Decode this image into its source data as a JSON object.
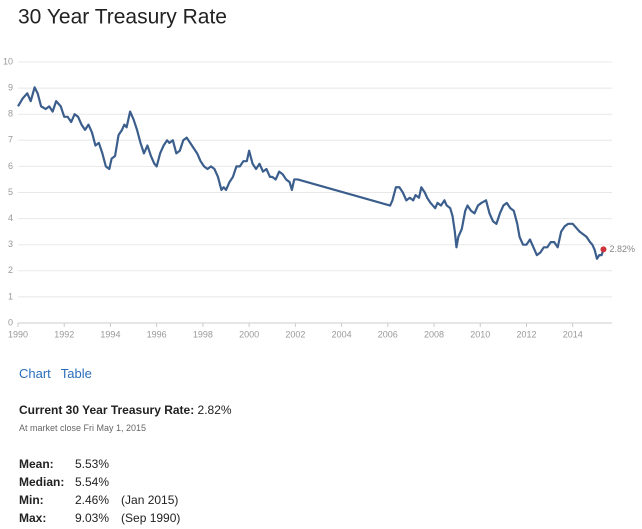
{
  "chart_data": {
    "type": "line",
    "title": "30 Year Treasury Rate",
    "x": [
      1990.0,
      1990.2,
      1990.4,
      1990.55,
      1990.72,
      1990.85,
      1991.0,
      1991.2,
      1991.35,
      1991.5,
      1991.65,
      1991.85,
      1992.0,
      1992.15,
      1992.3,
      1992.45,
      1992.6,
      1992.75,
      1992.9,
      1993.05,
      1993.2,
      1993.35,
      1993.5,
      1993.65,
      1993.8,
      1993.95,
      1994.05,
      1994.2,
      1994.35,
      1994.5,
      1994.6,
      1994.7,
      1994.85,
      1995.0,
      1995.15,
      1995.3,
      1995.45,
      1995.6,
      1995.75,
      1995.9,
      1996.0,
      1996.15,
      1996.3,
      1996.45,
      1996.55,
      1996.7,
      1996.85,
      1997.0,
      1997.15,
      1997.3,
      1997.45,
      1997.6,
      1997.75,
      1997.9,
      1998.05,
      1998.2,
      1998.35,
      1998.5,
      1998.65,
      1998.8,
      1998.9,
      1999.0,
      1999.15,
      1999.3,
      1999.45,
      1999.6,
      1999.75,
      1999.9,
      2000.0,
      2000.15,
      2000.3,
      2000.45,
      2000.6,
      2000.75,
      2000.9,
      2001.0,
      2001.15,
      2001.3,
      2001.45,
      2001.6,
      2001.75,
      2001.85,
      2001.95,
      2002.1,
      2006.1,
      2006.2,
      2006.35,
      2006.5,
      2006.65,
      2006.8,
      2006.95,
      2007.1,
      2007.2,
      2007.35,
      2007.45,
      2007.6,
      2007.7,
      2007.85,
      2007.95,
      2008.05,
      2008.15,
      2008.3,
      2008.45,
      2008.55,
      2008.7,
      2008.8,
      2008.9,
      2008.97,
      2009.05,
      2009.2,
      2009.35,
      2009.45,
      2009.6,
      2009.75,
      2009.9,
      2010.05,
      2010.25,
      2010.4,
      2010.55,
      2010.7,
      2010.85,
      2011.0,
      2011.15,
      2011.3,
      2011.45,
      2011.6,
      2011.7,
      2011.85,
      2012.0,
      2012.15,
      2012.3,
      2012.45,
      2012.6,
      2012.75,
      2012.9,
      2013.05,
      2013.2,
      2013.35,
      2013.5,
      2013.65,
      2013.8,
      2014.0,
      2014.1,
      2014.3,
      2014.45,
      2014.6,
      2014.75,
      2014.85,
      2014.95,
      2015.05,
      2015.15,
      2015.25,
      2015.33
    ],
    "series": [
      {
        "color": "#3b5e8c",
        "marker_color": "#d0323c",
        "values": [
          8.3,
          8.6,
          8.8,
          8.5,
          9.03,
          8.8,
          8.3,
          8.2,
          8.3,
          8.1,
          8.5,
          8.3,
          7.9,
          7.9,
          7.7,
          8.0,
          7.9,
          7.6,
          7.4,
          7.6,
          7.3,
          6.8,
          6.9,
          6.5,
          6.0,
          5.9,
          6.3,
          6.4,
          7.2,
          7.4,
          7.6,
          7.5,
          8.1,
          7.8,
          7.4,
          6.9,
          6.5,
          6.8,
          6.4,
          6.1,
          6.0,
          6.5,
          6.8,
          7.0,
          6.9,
          7.0,
          6.5,
          6.6,
          7.0,
          7.1,
          6.9,
          6.7,
          6.5,
          6.2,
          6.0,
          5.9,
          6.0,
          5.9,
          5.6,
          5.1,
          5.2,
          5.1,
          5.4,
          5.6,
          6.0,
          6.0,
          6.2,
          6.2,
          6.6,
          6.1,
          5.9,
          6.1,
          5.8,
          5.9,
          5.6,
          5.6,
          5.5,
          5.8,
          5.7,
          5.5,
          5.4,
          5.1,
          5.5,
          5.5,
          4.5,
          4.7,
          5.2,
          5.2,
          5.0,
          4.7,
          4.8,
          4.7,
          4.9,
          4.8,
          5.2,
          5.0,
          4.8,
          4.6,
          4.5,
          4.4,
          4.6,
          4.5,
          4.7,
          4.5,
          4.4,
          4.1,
          3.5,
          2.9,
          3.3,
          3.6,
          4.3,
          4.5,
          4.3,
          4.2,
          4.5,
          4.6,
          4.7,
          4.2,
          3.9,
          3.8,
          4.2,
          4.5,
          4.6,
          4.4,
          4.3,
          3.8,
          3.3,
          3.0,
          3.0,
          3.2,
          2.9,
          2.6,
          2.7,
          2.9,
          2.9,
          3.1,
          3.1,
          2.9,
          3.5,
          3.7,
          3.8,
          3.8,
          3.7,
          3.5,
          3.4,
          3.3,
          3.1,
          3.0,
          2.8,
          2.46,
          2.6,
          2.6,
          2.82
        ],
        "value_labels": [
          null,
          null,
          null,
          null,
          null,
          null,
          null,
          null,
          null,
          null,
          null,
          null,
          null,
          null,
          null,
          null,
          null,
          null,
          null,
          null,
          null,
          null,
          null,
          null,
          null,
          null,
          null,
          null,
          null,
          null,
          null,
          null,
          null,
          null,
          null,
          null,
          null,
          null,
          null,
          null,
          null,
          null,
          null,
          null,
          null,
          null,
          null,
          null,
          null,
          null,
          null,
          null,
          null,
          null,
          null,
          null,
          null,
          null,
          null,
          null,
          null,
          null,
          null,
          null,
          null,
          null,
          null,
          null,
          null,
          null,
          null,
          null,
          null,
          null,
          null,
          null,
          null,
          null,
          null,
          null,
          null,
          null,
          null,
          null,
          null,
          null,
          null,
          null,
          null,
          null,
          null,
          null,
          null,
          null,
          null,
          null,
          null,
          null,
          null,
          null,
          null,
          null,
          null,
          null,
          null,
          null,
          null,
          null,
          null,
          null,
          null,
          null,
          null,
          null,
          null,
          null,
          null,
          null,
          null,
          null,
          null,
          null,
          null,
          null,
          null,
          null,
          null,
          null,
          null,
          null,
          null,
          null,
          null,
          null,
          null,
          null,
          null,
          null,
          null,
          null,
          null,
          null,
          null,
          null,
          null,
          null,
          null,
          null,
          null,
          null,
          null,
          null,
          "2.82%"
        ]
      }
    ],
    "xlim": [
      1990,
      2015.7
    ],
    "xticks": [
      1990,
      1992,
      1994,
      1996,
      1998,
      2000,
      2002,
      2004,
      2006,
      2008,
      2010,
      2012,
      2014
    ],
    "ylim": [
      0,
      10
    ],
    "yticks": [
      0,
      1,
      2,
      3,
      4,
      5,
      6,
      7,
      8,
      9,
      10
    ],
    "grid": true
  },
  "tabs": [
    "Chart",
    "Table"
  ],
  "current": {
    "label": "Current 30 Year Treasury Rate:",
    "value": "2.82%",
    "note": "At market close Fri May 1, 2015"
  },
  "stats": [
    {
      "label": "Mean:",
      "value": "5.53%"
    },
    {
      "label": "Median:",
      "value": "5.54%"
    },
    {
      "label": "Min:",
      "value": "2.46%",
      "date": "(Jan 2015)"
    },
    {
      "label": "Max:",
      "value": "9.03%",
      "date": "(Sep 1990)"
    }
  ]
}
